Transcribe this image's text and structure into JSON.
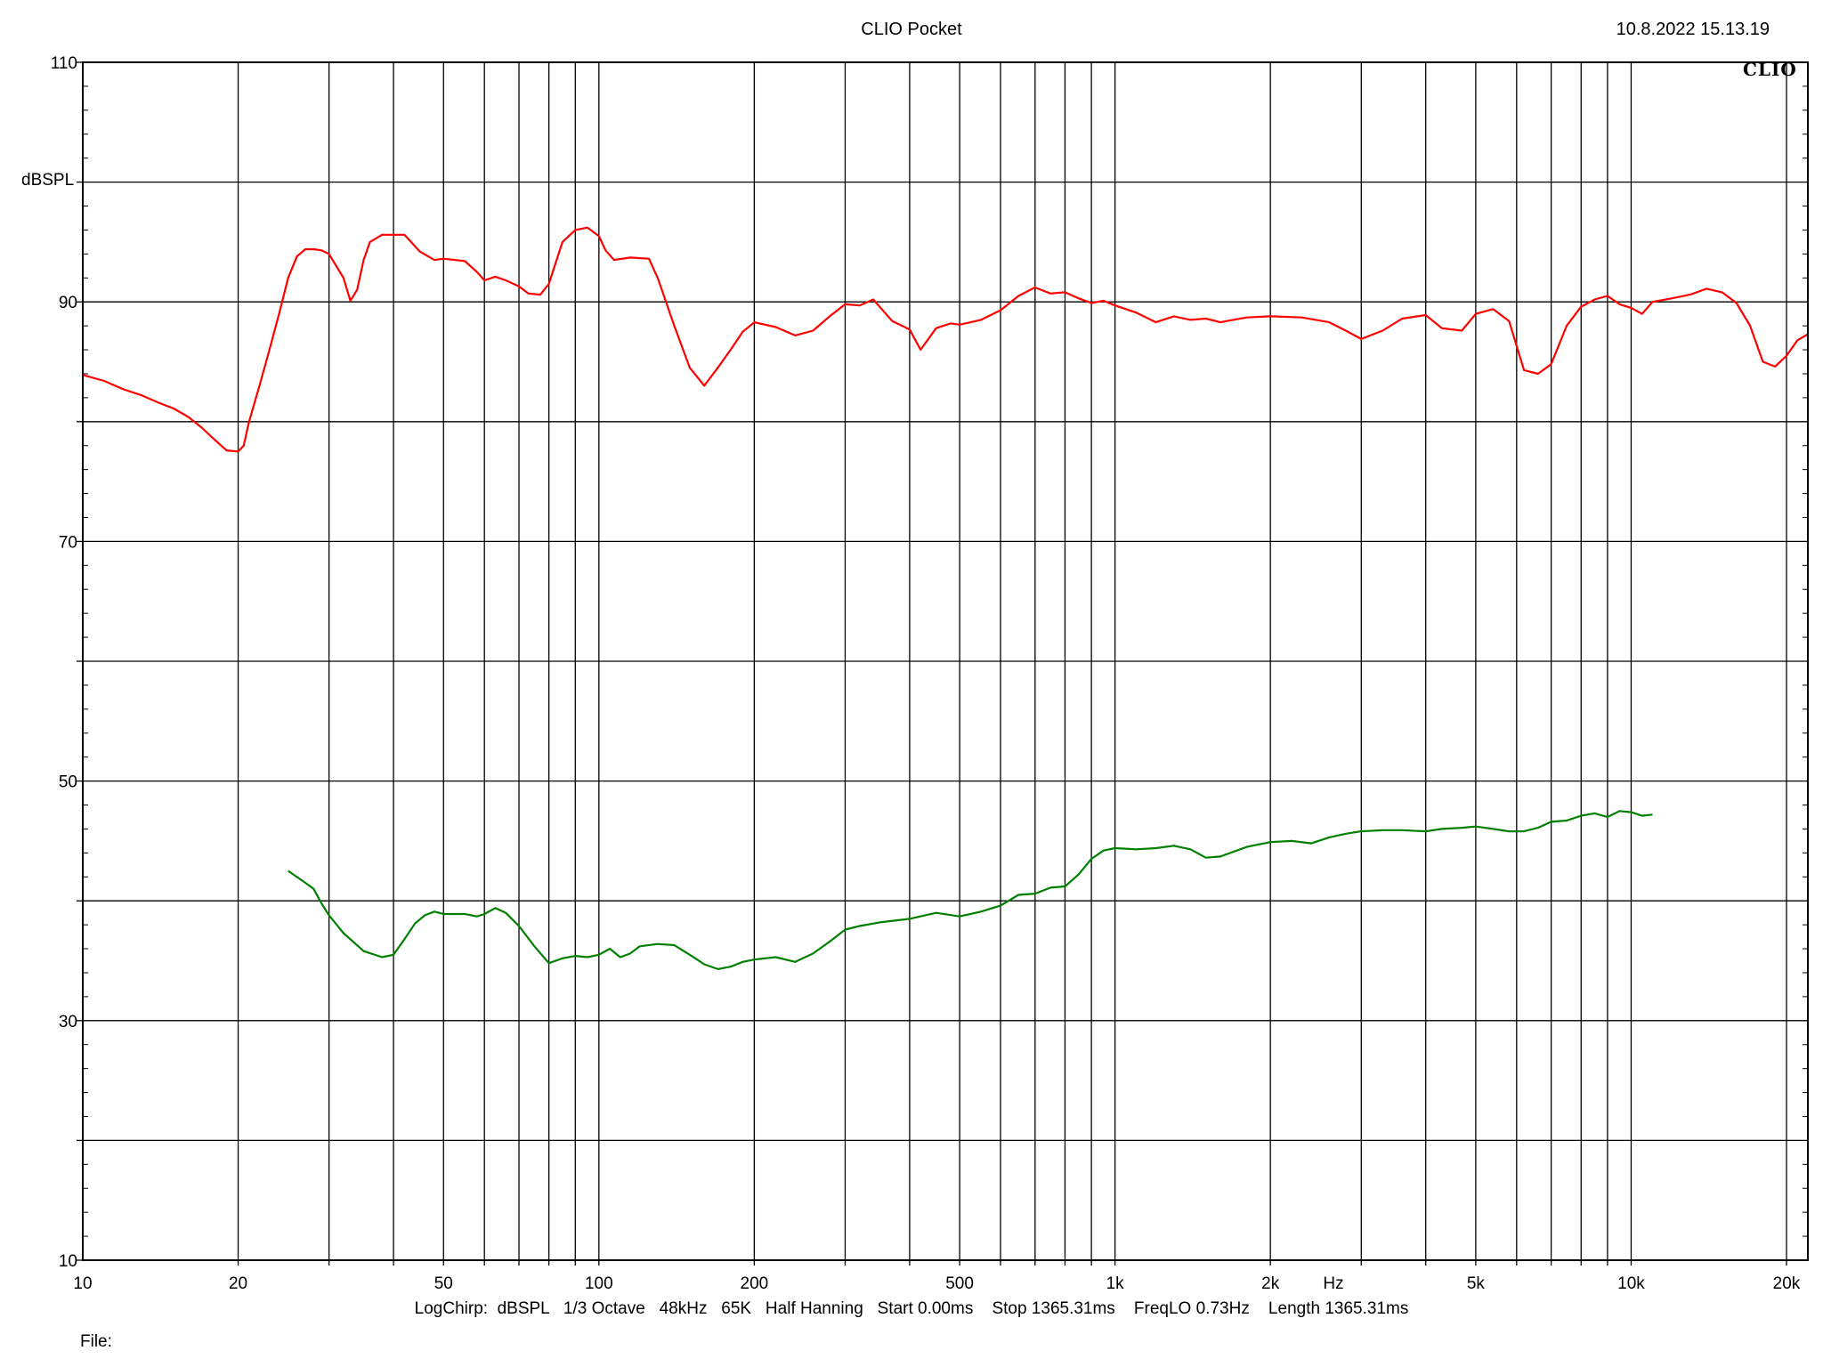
{
  "header": {
    "title": "CLIO Pocket",
    "date": "10.8.2022 15.13.19",
    "logo": "CLIO"
  },
  "footer": {
    "settings": "LogChirp:  dBSPL   1/3 Octave   48kHz   65K   Half Hanning   Start 0.00ms    Stop 1365.31ms    FreqLO 0.73Hz    Length 1365.31ms",
    "file_label": "File:"
  },
  "chart_data": {
    "type": "line",
    "title": "CLIO Pocket",
    "xlabel": "Hz",
    "ylabel": "dBSPL",
    "x_scale": "log",
    "xlim": [
      10,
      22000
    ],
    "ylim": [
      10,
      110
    ],
    "grid": true,
    "colors": {
      "red_series": "#ff0000",
      "green_series": "#008000",
      "grid": "#000000"
    },
    "x_ticks": [
      {
        "value": 10,
        "label": "10"
      },
      {
        "value": 20,
        "label": "20"
      },
      {
        "value": 50,
        "label": "50"
      },
      {
        "value": 100,
        "label": "100"
      },
      {
        "value": 200,
        "label": "200"
      },
      {
        "value": 500,
        "label": "500"
      },
      {
        "value": 1000,
        "label": "1k"
      },
      {
        "value": 2000,
        "label": "2k"
      },
      {
        "value": 5000,
        "label": "5k"
      },
      {
        "value": 10000,
        "label": "10k"
      },
      {
        "value": 20000,
        "label": "20k"
      }
    ],
    "y_ticks": [
      {
        "value": 10,
        "label": "10"
      },
      {
        "value": 30,
        "label": "30"
      },
      {
        "value": 50,
        "label": "50"
      },
      {
        "value": 70,
        "label": "70"
      },
      {
        "value": 90,
        "label": "90"
      },
      {
        "value": 110,
        "label": "110"
      }
    ],
    "series": [
      {
        "color": "#ff0000",
        "x": [
          10,
          11,
          12,
          13,
          14,
          15,
          16,
          17,
          18,
          19,
          20,
          20.5,
          21,
          22,
          23,
          24,
          25,
          26,
          27,
          28,
          29,
          30,
          32,
          33,
          34,
          35,
          36,
          38,
          40,
          42,
          45,
          48,
          50,
          55,
          58,
          60,
          63,
          66,
          70,
          73,
          77,
          80,
          85,
          90,
          95,
          100,
          103,
          107,
          115,
          125,
          130,
          140,
          150,
          160,
          170,
          180,
          190,
          200,
          220,
          240,
          260,
          280,
          300,
          320,
          340,
          370,
          400,
          420,
          450,
          480,
          500,
          550,
          600,
          650,
          700,
          750,
          800,
          850,
          900,
          950,
          1000,
          1100,
          1200,
          1300,
          1400,
          1500,
          1600,
          1800,
          2000,
          2300,
          2600,
          2800,
          3000,
          3300,
          3600,
          4000,
          4300,
          4700,
          5000,
          5400,
          5800,
          6200,
          6600,
          7000,
          7500,
          8000,
          8500,
          9000,
          9500,
          10000,
          10500,
          11000,
          12000,
          13000,
          14000,
          15000,
          16000,
          17000,
          18000,
          19000,
          20000,
          21000,
          22000
        ],
        "y": [
          83.9,
          83.4,
          82.7,
          82.2,
          81.6,
          81.1,
          80.4,
          79.5,
          78.5,
          77.6,
          77.5,
          78.0,
          80.0,
          83.0,
          86.0,
          89.0,
          92.0,
          93.8,
          94.4,
          94.4,
          94.3,
          94.0,
          92.0,
          90.1,
          91.0,
          93.5,
          95.0,
          95.6,
          95.6,
          95.6,
          94.2,
          93.5,
          93.6,
          93.4,
          92.5,
          91.8,
          92.1,
          91.8,
          91.3,
          90.7,
          90.6,
          91.5,
          95.0,
          96.0,
          96.2,
          95.5,
          94.3,
          93.5,
          93.7,
          93.6,
          92.0,
          88.0,
          84.5,
          83.0,
          84.5,
          86.0,
          87.5,
          88.3,
          87.9,
          87.2,
          87.6,
          88.8,
          89.8,
          89.7,
          90.2,
          88.4,
          87.7,
          86.0,
          87.8,
          88.2,
          88.1,
          88.5,
          89.3,
          90.5,
          91.2,
          90.7,
          90.8,
          90.3,
          89.9,
          90.1,
          89.7,
          89.1,
          88.3,
          88.8,
          88.5,
          88.6,
          88.3,
          88.7,
          88.8,
          88.7,
          88.3,
          87.6,
          86.9,
          87.6,
          88.6,
          88.9,
          87.8,
          87.6,
          89.0,
          89.4,
          88.4,
          84.3,
          84.0,
          84.8,
          88.0,
          89.6,
          90.2,
          90.5,
          89.8,
          89.5,
          89.0,
          90.0,
          90.3,
          90.6,
          91.1,
          90.8,
          89.9,
          88.0,
          85.0,
          84.6,
          85.5,
          86.8,
          87.3
        ]
      },
      {
        "color": "#008000",
        "x": [
          25,
          27,
          28,
          29,
          30,
          32,
          35,
          38,
          40,
          42,
          44,
          46,
          48,
          50,
          55,
          58,
          60,
          63,
          66,
          70,
          75,
          80,
          85,
          90,
          95,
          100,
          105,
          110,
          115,
          120,
          130,
          140,
          150,
          160,
          170,
          180,
          190,
          200,
          220,
          240,
          260,
          280,
          300,
          320,
          350,
          400,
          450,
          500,
          550,
          600,
          650,
          700,
          750,
          800,
          850,
          900,
          950,
          1000,
          1100,
          1200,
          1300,
          1400,
          1500,
          1600,
          1800,
          2000,
          2200,
          2400,
          2600,
          2800,
          3000,
          3300,
          3600,
          4000,
          4300,
          4700,
          5000,
          5400,
          5800,
          6200,
          6600,
          7000,
          7500,
          8000,
          8500,
          9000,
          9500,
          10000,
          10500,
          11000
        ],
        "y": [
          42.5,
          41.5,
          41.0,
          39.8,
          38.8,
          37.3,
          35.8,
          35.3,
          35.5,
          36.8,
          38.1,
          38.8,
          39.1,
          38.9,
          38.9,
          38.7,
          38.9,
          39.4,
          39.0,
          37.9,
          36.2,
          34.8,
          35.2,
          35.4,
          35.3,
          35.5,
          36.0,
          35.3,
          35.6,
          36.2,
          36.4,
          36.3,
          35.5,
          34.7,
          34.3,
          34.5,
          34.9,
          35.1,
          35.3,
          34.9,
          35.6,
          36.6,
          37.6,
          37.9,
          38.2,
          38.5,
          39.0,
          38.7,
          39.1,
          39.6,
          40.5,
          40.6,
          41.1,
          41.2,
          42.2,
          43.5,
          44.2,
          44.4,
          44.3,
          44.4,
          44.6,
          44.3,
          43.6,
          43.7,
          44.5,
          44.9,
          45.0,
          44.8,
          45.3,
          45.6,
          45.8,
          45.9,
          45.9,
          45.8,
          46.0,
          46.1,
          46.2,
          46.0,
          45.8,
          45.8,
          46.1,
          46.6,
          46.7,
          47.1,
          47.3,
          47.0,
          47.5,
          47.4,
          47.1,
          47.2
        ]
      }
    ]
  }
}
